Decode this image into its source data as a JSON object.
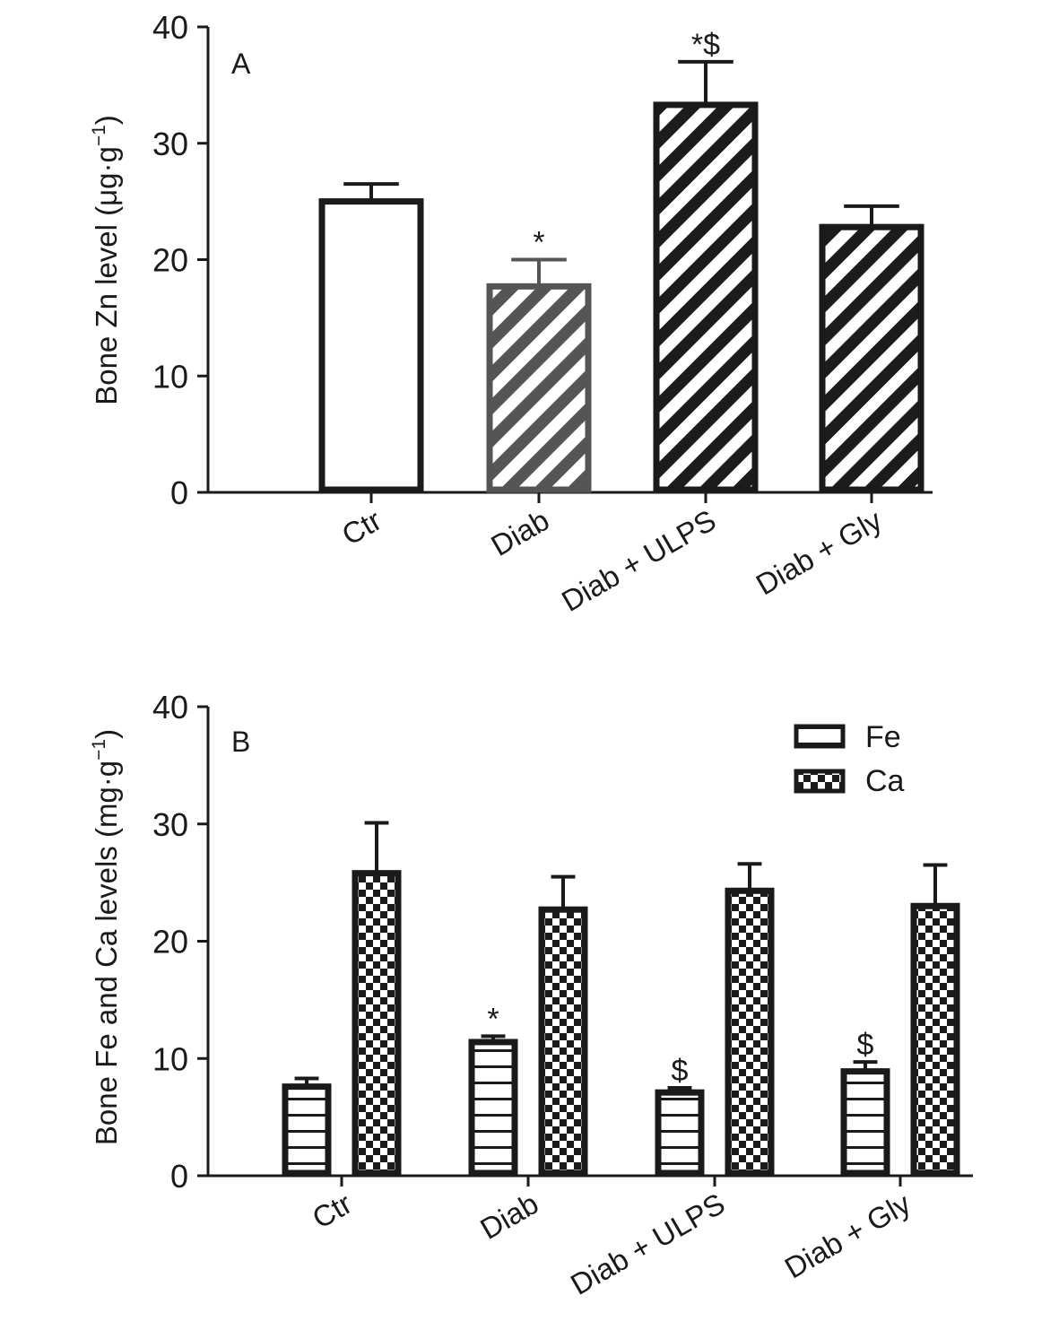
{
  "chart_data": [
    {
      "type": "bar",
      "panel": "A",
      "ylabel": "Bone Zn level (μg·g",
      "ylabel_sup": "−1",
      "ylabel_end": ")",
      "ylim": [
        0,
        40
      ],
      "yticks": [
        0,
        10,
        20,
        30,
        40
      ],
      "categories": [
        "Ctr",
        "Diab",
        "Diab + ULPS",
        "Diab + Gly"
      ],
      "series": [
        {
          "values": [
            25,
            17.7,
            33.3,
            22.8
          ],
          "errors": [
            1.5,
            2.3,
            3.7,
            1.8
          ],
          "annotations": [
            "",
            "*",
            "*$",
            ""
          ],
          "fills": [
            "white",
            "hatch-gray",
            "hatch-dark",
            "hatch-dark"
          ]
        }
      ],
      "grid": false
    },
    {
      "type": "bar",
      "panel": "B",
      "ylabel": "Bone Fe and Ca levels (mg·g",
      "ylabel_sup": "−1",
      "ylabel_end": ")",
      "ylim": [
        0,
        40
      ],
      "yticks": [
        0,
        10,
        20,
        30,
        40
      ],
      "categories": [
        "Ctr",
        "Diab",
        "Diab + ULPS",
        "Diab + Gly"
      ],
      "series": [
        {
          "name": "Fe",
          "values": [
            7.6,
            11.4,
            7.1,
            8.9
          ],
          "errors": [
            0.7,
            0.5,
            0.4,
            0.8
          ],
          "annotations": [
            "",
            "*",
            "$",
            "$"
          ],
          "fill": "horizontal-stripes"
        },
        {
          "name": "Ca",
          "values": [
            25.8,
            22.7,
            24.3,
            23
          ],
          "errors": [
            4.3,
            2.8,
            2.3,
            3.5
          ],
          "annotations": [
            "",
            "",
            "",
            ""
          ],
          "fill": "checkerboard"
        }
      ],
      "legend_position": "top-right",
      "grid": false
    }
  ],
  "colors": {
    "bar_edge": "#1a1a1a",
    "bar_edge_gray": "#555555",
    "hatch_white": "#ffffff"
  }
}
